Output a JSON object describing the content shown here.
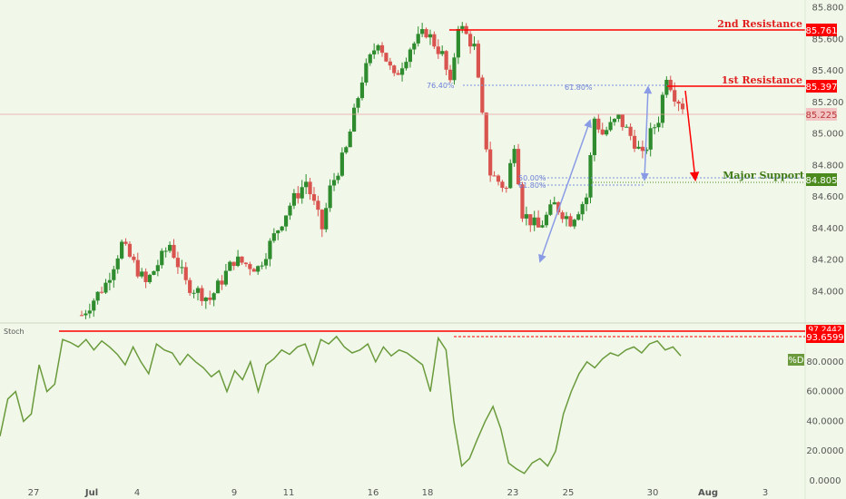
{
  "colors": {
    "background": "#f1f8e9",
    "bull": "#2e8b2e",
    "bear": "#d9534f",
    "resistance": "#ff0000",
    "support": "#4b8b1e",
    "fib": "#7b8fe0",
    "stoch": "#6a9a3c",
    "price_tag": "#f2c4c4"
  },
  "chart_data": [
    {
      "type": "candlestick",
      "ylim": [
        83.8,
        85.85
      ],
      "y_ticks": [
        "85.800",
        "85.600",
        "85.400",
        "85.200",
        "85.000",
        "84.800",
        "84.600",
        "84.400",
        "84.200",
        "84.000"
      ],
      "current_price": "85.225",
      "levels": [
        {
          "label": "2nd Resistance",
          "value": "85.761"
        },
        {
          "label": "1st Resistance",
          "value": "85.397"
        },
        {
          "label": "Major Support",
          "value": "84.805"
        }
      ],
      "fib_labels": [
        "76.40%",
        "61.80%",
        "50.00%",
        "61.80%"
      ],
      "candles_note": "",
      "anchors": [
        [
          0,
          83.85
        ],
        [
          3,
          84.05
        ],
        [
          5,
          84.3
        ],
        [
          8,
          84.05
        ],
        [
          11,
          84.3
        ],
        [
          13,
          84.05
        ],
        [
          16,
          83.95
        ],
        [
          19,
          84.2
        ],
        [
          22,
          84.15
        ],
        [
          24,
          84.35
        ],
        [
          26,
          84.55
        ],
        [
          28,
          84.7
        ],
        [
          29,
          84.55
        ],
        [
          30,
          84.4
        ],
        [
          31,
          84.65
        ],
        [
          33,
          84.9
        ],
        [
          35,
          85.35
        ],
        [
          37,
          85.6
        ],
        [
          39,
          85.35
        ],
        [
          41,
          85.55
        ],
        [
          43,
          85.65
        ],
        [
          45,
          85.5
        ],
        [
          46,
          85.3
        ],
        [
          47,
          85.7
        ],
        [
          49,
          85.55
        ],
        [
          50,
          85.1
        ],
        [
          51,
          84.75
        ],
        [
          53,
          84.65
        ],
        [
          54,
          84.95
        ],
        [
          55,
          84.5
        ],
        [
          57,
          84.4
        ],
        [
          59,
          84.55
        ],
        [
          61,
          84.45
        ],
        [
          63,
          84.6
        ],
        [
          64,
          85.1
        ],
        [
          65,
          85.0
        ],
        [
          67,
          85.1
        ],
        [
          69,
          84.95
        ],
        [
          70,
          84.85
        ],
        [
          71,
          85.0
        ],
        [
          72,
          85.1
        ],
        [
          73,
          85.38
        ],
        [
          74,
          85.25
        ],
        [
          75,
          85.18
        ]
      ]
    },
    {
      "type": "line",
      "name": "Stoch",
      "ylim": [
        0,
        100
      ],
      "y_ticks": [
        "80.0000",
        "60.0000",
        "40.0000",
        "20.0000",
        "0.0000"
      ],
      "tag_top": "97.2442",
      "tag_level": "93.6599",
      "series_tag": "%D",
      "values": [
        30,
        55,
        60,
        40,
        45,
        78,
        60,
        65,
        95,
        93,
        90,
        95,
        88,
        94,
        90,
        85,
        78,
        90,
        80,
        72,
        92,
        88,
        86,
        78,
        85,
        80,
        76,
        70,
        74,
        60,
        74,
        68,
        80,
        60,
        78,
        82,
        88,
        85,
        90,
        92,
        78,
        95,
        92,
        97,
        90,
        86,
        88,
        92,
        80,
        90,
        84,
        88,
        86,
        82,
        78,
        60,
        96,
        88,
        40,
        10,
        15,
        28,
        40,
        50,
        35,
        12,
        8,
        5,
        12,
        15,
        10,
        20,
        45,
        60,
        72,
        80,
        76,
        82,
        86,
        84,
        88,
        90,
        86,
        92,
        94,
        88,
        90,
        84
      ]
    }
  ],
  "x_axis": {
    "ticks": [
      "27",
      "Jul",
      "4",
      "9",
      "11",
      "16",
      "18",
      "23",
      "25",
      "30",
      "Aug",
      "3"
    ]
  }
}
